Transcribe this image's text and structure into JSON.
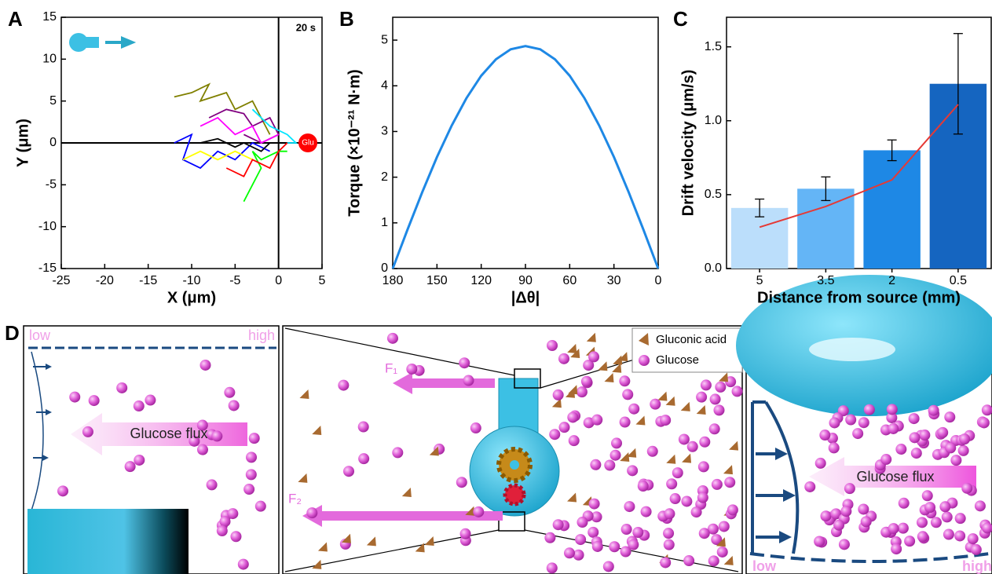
{
  "chart_data": [
    {
      "panel": "A",
      "type": "line",
      "xlabel": "X (μm)",
      "ylabel": "Y (μm)",
      "annotation": "20 s",
      "marker_label": "Glu",
      "xlim": [
        -25,
        5
      ],
      "xticks": [
        -25,
        -20,
        -15,
        -10,
        -5,
        0,
        5
      ],
      "ylim": [
        -15,
        15
      ],
      "yticks": [
        -15,
        -10,
        -5,
        0,
        5,
        10,
        15
      ],
      "series": [
        {
          "color": "#808000",
          "x": [
            -12,
            -10,
            -8,
            -9,
            -6,
            -5,
            -3,
            -2,
            -1
          ],
          "values": [
            5.5,
            6,
            7,
            5,
            6,
            4,
            5,
            3,
            1
          ]
        },
        {
          "color": "#800080",
          "x": [
            -8,
            -6,
            -4,
            -3,
            -1,
            0,
            -2,
            -4
          ],
          "values": [
            3,
            4,
            3.5,
            2,
            3,
            1,
            0,
            1
          ]
        },
        {
          "color": "#00e5ff",
          "x": [
            -3,
            -2,
            -1,
            1,
            2,
            1
          ],
          "values": [
            4,
            3,
            2,
            1,
            0,
            0
          ]
        },
        {
          "color": "#ff00ff",
          "x": [
            -9,
            -7,
            -5,
            -3,
            -2,
            0
          ],
          "values": [
            2,
            3,
            1,
            2,
            0,
            1
          ]
        },
        {
          "color": "#0000ff",
          "x": [
            -12,
            -10,
            -11,
            -9,
            -7,
            -5,
            -3,
            -1
          ],
          "values": [
            0,
            1,
            -2,
            -3,
            -1,
            -2,
            0,
            -1
          ]
        },
        {
          "color": "#000000",
          "x": [
            -9,
            -7,
            -5,
            -4,
            -2,
            -1
          ],
          "values": [
            0,
            0.5,
            -0.5,
            0,
            -1,
            0
          ]
        },
        {
          "color": "#ffff00",
          "x": [
            -11,
            -9,
            -7,
            -5,
            -3
          ],
          "values": [
            -2,
            -1,
            -2,
            -1,
            -2
          ]
        },
        {
          "color": "#00ff00",
          "x": [
            -4,
            -3,
            -2,
            -3,
            -2,
            0,
            1
          ],
          "values": [
            -7,
            -5,
            -3,
            -1,
            -2,
            -1,
            -1
          ]
        },
        {
          "color": "#ff0000",
          "x": [
            -6,
            -4,
            -3,
            -1,
            0,
            1
          ],
          "values": [
            -3,
            -4,
            -2,
            -3,
            -1,
            0
          ]
        }
      ]
    },
    {
      "panel": "B",
      "type": "line",
      "xlabel": "|Δθ|",
      "ylabel": "Torque (×10⁻²¹ N·m)",
      "color": "#1e88e5",
      "xlim": [
        180,
        0
      ],
      "xticks": [
        180,
        150,
        120,
        90,
        60,
        30,
        0
      ],
      "ylim": [
        0,
        5.5
      ],
      "yticks": [
        0,
        1,
        2,
        3,
        4,
        5
      ],
      "x": [
        180,
        170,
        160,
        150,
        140,
        130,
        120,
        110,
        100,
        90,
        80,
        70,
        60,
        50,
        40,
        30,
        20,
        10,
        0
      ],
      "values": [
        0,
        0.85,
        1.67,
        2.44,
        3.13,
        3.73,
        4.22,
        4.58,
        4.8,
        4.87,
        4.8,
        4.58,
        4.22,
        3.73,
        3.13,
        2.44,
        1.67,
        0.85,
        0
      ]
    },
    {
      "panel": "C",
      "type": "bar",
      "xlabel": "Distance from source (mm)",
      "ylabel": "Drift velocity (μm/s)",
      "categories": [
        "5",
        "3.5",
        "2",
        "0.5"
      ],
      "values": [
        0.41,
        0.54,
        0.8,
        1.25
      ],
      "errors": [
        0.06,
        0.08,
        0.07,
        0.34
      ],
      "colors": [
        "#bbdefb",
        "#64b5f6",
        "#1e88e5",
        "#1565c0"
      ],
      "fit": {
        "color": "#e53935",
        "values": [
          0.28,
          0.42,
          0.6,
          1.11
        ]
      },
      "ylim": [
        0,
        1.7
      ],
      "yticks": [
        {
          "value": 0,
          "label": "0.0"
        },
        0.5,
        {
          "value": 1,
          "label": "1.0"
        },
        1.5
      ]
    }
  ],
  "diagram": {
    "panel": "D",
    "left": {
      "low": "low",
      "high": "high",
      "flux": "Glucose flux"
    },
    "middle": {
      "f1": "F₁",
      "f2": "F₂",
      "legend": [
        "Gluconic acid",
        "Glucose"
      ]
    },
    "right": {
      "flux": "Glucose flux",
      "low": "low",
      "high": "high"
    }
  }
}
